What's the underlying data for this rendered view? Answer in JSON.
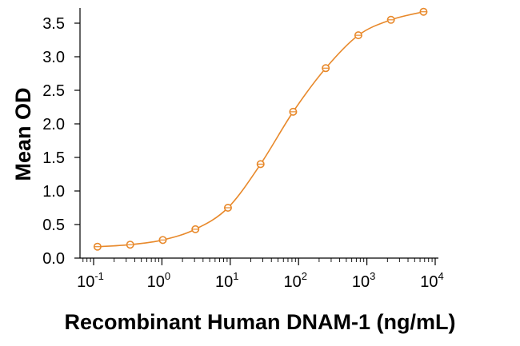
{
  "chart_data": {
    "type": "scatter",
    "title": "",
    "xlabel": "Recombinant Human DNAM-1 (ng/mL)",
    "ylabel": "Mean OD",
    "xscale": "log",
    "xlim": [
      0.1,
      10000
    ],
    "ylim": [
      0,
      3.75
    ],
    "yticks": [
      "0.0",
      "0.5",
      "1.0",
      "1.5",
      "2.0",
      "2.5",
      "3.0",
      "3.5"
    ],
    "xticks": [
      {
        "base": "10",
        "exp": "-1"
      },
      {
        "base": "10",
        "exp": "0"
      },
      {
        "base": "10",
        "exp": "1"
      },
      {
        "base": "10",
        "exp": "2"
      },
      {
        "base": "10",
        "exp": "3"
      },
      {
        "base": "10",
        "exp": "4"
      }
    ],
    "color": "#E8892B",
    "grid": false,
    "series": [
      {
        "name": "DNAM-1",
        "x": [
          0.114,
          0.343,
          1.03,
          3.09,
          9.26,
          27.8,
          83.3,
          250,
          750,
          2250,
          6750
        ],
        "y": [
          0.17,
          0.2,
          0.27,
          0.43,
          0.75,
          1.4,
          2.18,
          2.83,
          3.32,
          3.55,
          3.67
        ],
        "fit": "four-parameter logistic curve"
      }
    ]
  }
}
